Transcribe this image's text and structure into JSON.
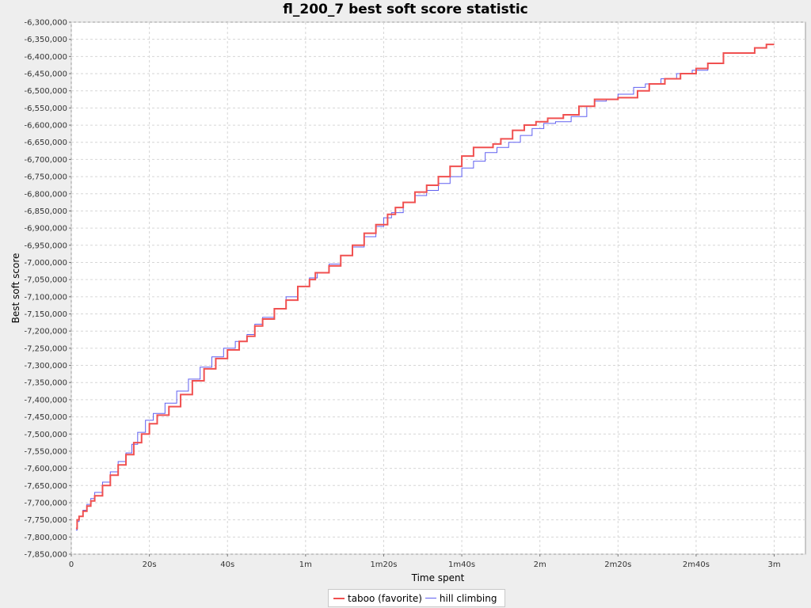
{
  "chart_data": {
    "type": "line",
    "title": "fl_200_7 best soft score statistic",
    "xlabel": "Time spent",
    "ylabel": "Best soft score",
    "xlim": [
      0,
      188
    ],
    "ylim": [
      -7850000,
      -6300000
    ],
    "x_ticks": [
      {
        "value": 0,
        "label": "0"
      },
      {
        "value": 20,
        "label": "20s"
      },
      {
        "value": 40,
        "label": "40s"
      },
      {
        "value": 60,
        "label": "1m"
      },
      {
        "value": 80,
        "label": "1m20s"
      },
      {
        "value": 100,
        "label": "1m40s"
      },
      {
        "value": 120,
        "label": "2m"
      },
      {
        "value": 140,
        "label": "2m20s"
      },
      {
        "value": 160,
        "label": "2m40s"
      },
      {
        "value": 180,
        "label": "3m"
      }
    ],
    "y_ticks": [
      {
        "value": -6300000,
        "label": "-6,300,000"
      },
      {
        "value": -6350000,
        "label": "-6,350,000"
      },
      {
        "value": -6400000,
        "label": "-6,400,000"
      },
      {
        "value": -6450000,
        "label": "-6,450,000"
      },
      {
        "value": -6500000,
        "label": "-6,500,000"
      },
      {
        "value": -6550000,
        "label": "-6,550,000"
      },
      {
        "value": -6600000,
        "label": "-6,600,000"
      },
      {
        "value": -6650000,
        "label": "-6,650,000"
      },
      {
        "value": -6700000,
        "label": "-6,700,000"
      },
      {
        "value": -6750000,
        "label": "-6,750,000"
      },
      {
        "value": -6800000,
        "label": "-6,800,000"
      },
      {
        "value": -6850000,
        "label": "-6,850,000"
      },
      {
        "value": -6900000,
        "label": "-6,900,000"
      },
      {
        "value": -6950000,
        "label": "-6,950,000"
      },
      {
        "value": -7000000,
        "label": "-7,000,000"
      },
      {
        "value": -7050000,
        "label": "-7,050,000"
      },
      {
        "value": -7100000,
        "label": "-7,100,000"
      },
      {
        "value": -7150000,
        "label": "-7,150,000"
      },
      {
        "value": -7200000,
        "label": "-7,200,000"
      },
      {
        "value": -7250000,
        "label": "-7,250,000"
      },
      {
        "value": -7300000,
        "label": "-7,300,000"
      },
      {
        "value": -7350000,
        "label": "-7,350,000"
      },
      {
        "value": -7400000,
        "label": "-7,400,000"
      },
      {
        "value": -7450000,
        "label": "-7,450,000"
      },
      {
        "value": -7500000,
        "label": "-7,500,000"
      },
      {
        "value": -7550000,
        "label": "-7,550,000"
      },
      {
        "value": -7600000,
        "label": "-7,600,000"
      },
      {
        "value": -7650000,
        "label": "-7,650,000"
      },
      {
        "value": -7700000,
        "label": "-7,700,000"
      },
      {
        "value": -7750000,
        "label": "-7,750,000"
      },
      {
        "value": -7800000,
        "label": "-7,800,000"
      },
      {
        "value": -7850000,
        "label": "-7,850,000"
      }
    ],
    "grid": true,
    "legend_position": "bottom-center",
    "series": [
      {
        "name": "taboo (favorite)",
        "color": "#f05050",
        "line_width": 2,
        "step": true,
        "x": [
          1.2,
          1.5,
          2.0,
          3.0,
          4.0,
          5.0,
          6.0,
          8.0,
          10.0,
          12.0,
          14.0,
          16.0,
          18.0,
          20.0,
          22.0,
          25.0,
          28.0,
          31.0,
          34.0,
          37.0,
          40.0,
          43.0,
          45.0,
          47.0,
          49.0,
          52.0,
          55.0,
          58.0,
          61.0,
          62.5,
          66.0,
          69.0,
          72.0,
          75.0,
          78.0,
          81.0,
          83.0,
          85.0,
          88.0,
          91.0,
          94.0,
          97.0,
          100.0,
          103.0,
          106.0,
          108.0,
          110.0,
          113.0,
          116.0,
          119.0,
          122.0,
          126.0,
          130.0,
          132.0,
          134.0,
          138.0,
          140.0,
          145.0,
          148.0,
          152.0,
          156.0,
          160.0,
          163.0,
          167.0,
          171.0,
          175.0,
          178.0,
          180.0
        ],
        "y": [
          -7775000,
          -7750000,
          -7740000,
          -7725000,
          -7710000,
          -7695000,
          -7680000,
          -7650000,
          -7620000,
          -7590000,
          -7560000,
          -7525000,
          -7500000,
          -7470000,
          -7445000,
          -7420000,
          -7385000,
          -7345000,
          -7310000,
          -7280000,
          -7255000,
          -7230000,
          -7215000,
          -7185000,
          -7165000,
          -7135000,
          -7110000,
          -7070000,
          -7050000,
          -7030000,
          -7010000,
          -6980000,
          -6950000,
          -6915000,
          -6890000,
          -6860000,
          -6840000,
          -6825000,
          -6795000,
          -6775000,
          -6750000,
          -6720000,
          -6690000,
          -6665000,
          -6665000,
          -6655000,
          -6640000,
          -6615000,
          -6600000,
          -6590000,
          -6580000,
          -6570000,
          -6545000,
          -6545000,
          -6525000,
          -6525000,
          -6520000,
          -6500000,
          -6480000,
          -6465000,
          -6450000,
          -6435000,
          -6420000,
          -6390000,
          -6390000,
          -6375000,
          -6365000,
          -6365000
        ]
      },
      {
        "name": "hill climbing",
        "color": "#6060f0",
        "line_width": 1,
        "step": true,
        "x": [
          1.2,
          1.5,
          2.0,
          3.0,
          4.0,
          5.0,
          6.0,
          8.0,
          10.0,
          12.0,
          14.0,
          15.5,
          17.0,
          19.0,
          21.0,
          24.0,
          27.0,
          30.0,
          33.0,
          36.0,
          39.0,
          42.0,
          45.0,
          47.0,
          49.0,
          52.0,
          55.0,
          58.0,
          61.0,
          63.0,
          66.0,
          69.0,
          72.0,
          75.0,
          78.0,
          80.0,
          82.0,
          85.0,
          88.0,
          91.0,
          94.0,
          97.0,
          100.0,
          103.0,
          106.0,
          109.0,
          112.0,
          115.0,
          118.0,
          121.0,
          124.0,
          128.0,
          132.0,
          134.0,
          137.0,
          140.0,
          144.0,
          147.0,
          151.0,
          155.0,
          159.0,
          163.0,
          167.0,
          171.0,
          175.0,
          178.0,
          180.0
        ],
        "y": [
          -7780000,
          -7755000,
          -7740000,
          -7722000,
          -7705000,
          -7688000,
          -7670000,
          -7640000,
          -7610000,
          -7580000,
          -7555000,
          -7530000,
          -7495000,
          -7460000,
          -7440000,
          -7410000,
          -7375000,
          -7340000,
          -7305000,
          -7275000,
          -7250000,
          -7230000,
          -7210000,
          -7180000,
          -7160000,
          -7135000,
          -7100000,
          -7070000,
          -7045000,
          -7030000,
          -7005000,
          -6980000,
          -6955000,
          -6925000,
          -6895000,
          -6870000,
          -6855000,
          -6825000,
          -6805000,
          -6790000,
          -6770000,
          -6750000,
          -6725000,
          -6705000,
          -6680000,
          -6665000,
          -6650000,
          -6630000,
          -6610000,
          -6595000,
          -6590000,
          -6575000,
          -6545000,
          -6530000,
          -6525000,
          -6510000,
          -6490000,
          -6480000,
          -6465000,
          -6450000,
          -6440000,
          -6420000,
          -6390000,
          -6390000,
          -6375000,
          -6365000,
          -6365000
        ]
      }
    ]
  }
}
